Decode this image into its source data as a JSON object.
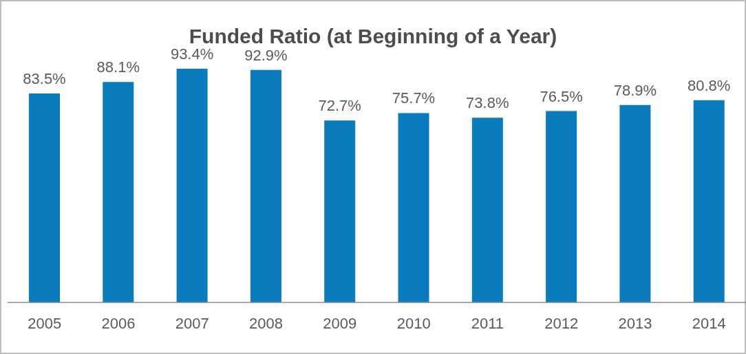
{
  "chart_data": {
    "type": "bar",
    "title": "Funded Ratio (at Beginning of a Year)",
    "categories": [
      "2005",
      "2006",
      "2007",
      "2008",
      "2009",
      "2010",
      "2011",
      "2012",
      "2013",
      "2014"
    ],
    "values": [
      83.5,
      88.1,
      93.4,
      92.9,
      72.7,
      75.7,
      73.8,
      76.5,
      78.9,
      80.8
    ],
    "value_labels": [
      "83.5%",
      "88.1%",
      "93.4%",
      "92.9%",
      "72.7%",
      "75.7%",
      "73.8%",
      "76.5%",
      "78.9%",
      "80.8%"
    ],
    "color": "#0a7bbd"
  }
}
